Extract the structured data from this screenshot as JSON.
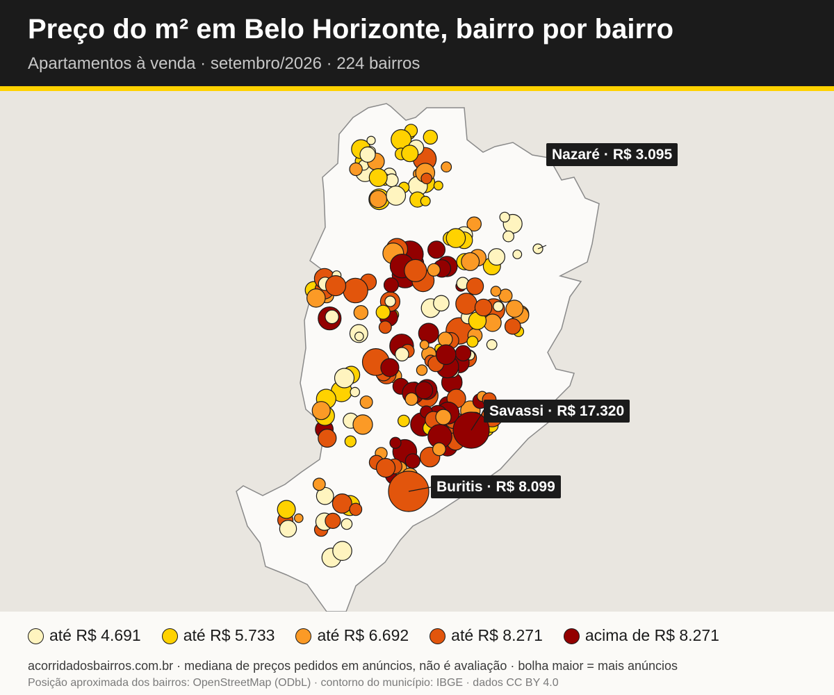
{
  "header": {
    "title": "Preço do m² em Belo Horizonte, bairro por bairro",
    "subtitle": "Apartamentos à venda · setembro/2026 · 224 bairros"
  },
  "colors": {
    "header_background": "#1b1b1b",
    "accent_bar": "#ffd200",
    "map_background": "#e9e6e0",
    "city_fill": "#fbfaf8",
    "city_outline": "#8a8a8a",
    "bubble_outline": "#1a1a1a",
    "label_background": "#1b1b1b",
    "label_text": "#ffffff"
  },
  "map": {
    "region": "Belo Horizonte",
    "unit": "R$/m²",
    "price_classes": [
      {
        "id": "c1",
        "color": "#fff4bf"
      },
      {
        "id": "c2",
        "color": "#ffd200"
      },
      {
        "id": "c3",
        "color": "#fb9a26"
      },
      {
        "id": "c4",
        "color": "#e2550c"
      },
      {
        "id": "c5",
        "color": "#930000"
      }
    ],
    "highlighted": [
      {
        "name": "Nazaré",
        "price": "R$ 3.095",
        "price_class": "c1"
      },
      {
        "name": "Savassi",
        "price": "R$ 17.320",
        "price_class": "c5"
      },
      {
        "name": "Buritis",
        "price": "R$ 8.099",
        "price_class": "c4"
      }
    ],
    "label_separator": "·",
    "bubble_size_meaning": "bolha maior = mais anúncios"
  },
  "legend": {
    "items": [
      {
        "label": "até R$ 4.691",
        "color": "#fff4bf"
      },
      {
        "label": "até R$ 5.733",
        "color": "#ffd200"
      },
      {
        "label": "até R$ 6.692",
        "color": "#fb9a26"
      },
      {
        "label": "até R$ 8.271",
        "color": "#e2550c"
      },
      {
        "label": "acima de R$ 8.271",
        "color": "#930000"
      }
    ]
  },
  "footer": {
    "note": "acorridadosbairros.com.br · mediana de preços pedidos em anúncios, não é avaliação · bolha maior = mais anúncios",
    "attribution": "Posição aproximada dos bairros: OpenStreetMap (ODbL) · contorno do município: IBGE · dados CC BY 4.0"
  }
}
